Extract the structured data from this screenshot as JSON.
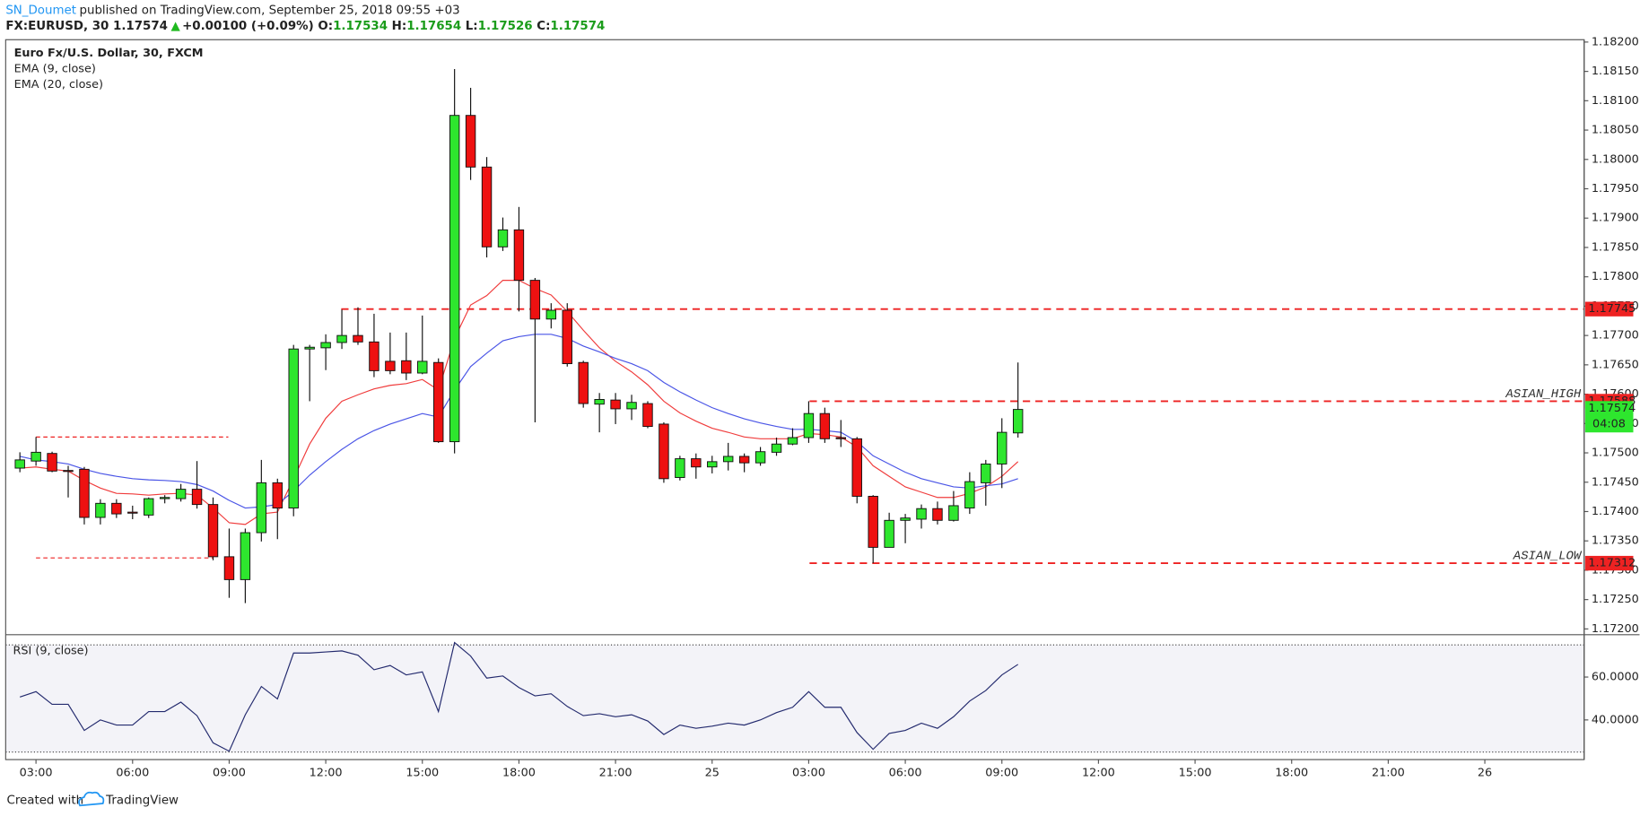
{
  "header": {
    "author": "SN_Doumet",
    "published": "published on TradingView.com, September 25, 2018 09:55 +03",
    "symbol": "FX:EURUSD, 30",
    "last": "1.17574",
    "arrow": "▲",
    "change": "+0.00100 (+0.09%)",
    "quote": [
      {
        "key": "O:",
        "value": "1.17534"
      },
      {
        "key": "H:",
        "value": "1.17654"
      },
      {
        "key": "L:",
        "value": "1.17526"
      },
      {
        "key": "C:",
        "value": "1.17574"
      }
    ]
  },
  "chart_data": [
    {
      "type": "candlestick",
      "title": "Euro Fx/U.S. Dollar, 30, FXCM",
      "x": [
        "02:30",
        "03:00",
        "03:30",
        "04:00",
        "04:30",
        "05:00",
        "05:30",
        "06:00",
        "06:30",
        "07:00",
        "07:30",
        "08:00",
        "08:30",
        "09:00",
        "09:30",
        "10:00",
        "10:30",
        "11:00",
        "11:30",
        "12:00",
        "12:30",
        "13:00",
        "13:30",
        "14:00",
        "14:30",
        "15:00",
        "15:30",
        "16:00",
        "16:30",
        "17:00",
        "17:30",
        "18:00",
        "18:30",
        "19:00",
        "19:30",
        "20:00",
        "20:30",
        "21:00",
        "21:30",
        "22:00",
        "22:30",
        "23:00",
        "23:30",
        "25",
        "00:30",
        "01:00",
        "01:30",
        "02:00",
        "02:30",
        "03:00",
        "03:30",
        "04:00",
        "04:30",
        "05:00",
        "05:30",
        "06:00",
        "06:30",
        "07:00",
        "07:30",
        "08:00",
        "08:30",
        "09:00",
        "09:30"
      ],
      "open": [
        1.17474,
        1.17486,
        1.17499,
        1.1747,
        1.17472,
        1.1739,
        1.17414,
        1.17399,
        1.17394,
        1.17422,
        1.17422,
        1.17438,
        1.17412,
        1.17323,
        1.17284,
        1.17364,
        1.17449,
        1.17406,
        1.17677,
        1.17679,
        1.17688,
        1.177,
        1.17689,
        1.17656,
        1.17657,
        1.17636,
        1.17654,
        1.17519,
        1.18075,
        1.17987,
        1.17851,
        1.1788,
        1.17794,
        1.17728,
        1.17743,
        1.17654,
        1.17583,
        1.1759,
        1.17575,
        1.17584,
        1.17549,
        1.17458,
        1.1749,
        1.17476,
        1.17485,
        1.17494,
        1.17483,
        1.17501,
        1.17515,
        1.17526,
        1.17567,
        1.17526,
        1.17524,
        1.17426,
        1.17339,
        1.17385,
        1.17387,
        1.17405,
        1.17385,
        1.17406,
        1.17449,
        1.17481,
        1.17534
      ],
      "high": [
        1.17501,
        1.17527,
        1.17502,
        1.17478,
        1.17476,
        1.17421,
        1.17421,
        1.1741,
        1.17424,
        1.17428,
        1.17447,
        1.17486,
        1.17424,
        1.17371,
        1.17371,
        1.17488,
        1.17456,
        1.17684,
        1.17684,
        1.17702,
        1.17744,
        1.17748,
        1.17737,
        1.17705,
        1.17705,
        1.17734,
        1.17661,
        1.18154,
        1.18122,
        1.18004,
        1.17901,
        1.17919,
        1.17798,
        1.17755,
        1.17755,
        1.17657,
        1.17602,
        1.17602,
        1.17599,
        1.17588,
        1.17552,
        1.17495,
        1.17499,
        1.17495,
        1.17517,
        1.17499,
        1.1751,
        1.17526,
        1.17542,
        1.17588,
        1.17577,
        1.17556,
        1.17527,
        1.17428,
        1.17398,
        1.17396,
        1.17412,
        1.17417,
        1.17435,
        1.17467,
        1.17488,
        1.17559,
        1.17654
      ],
      "low": [
        1.17467,
        1.17478,
        1.17467,
        1.17424,
        1.17378,
        1.17378,
        1.17389,
        1.17387,
        1.17389,
        1.17414,
        1.17417,
        1.17405,
        1.17317,
        1.17253,
        1.17244,
        1.17349,
        1.17353,
        1.17392,
        1.17588,
        1.17641,
        1.17677,
        1.17684,
        1.17629,
        1.17634,
        1.17624,
        1.17634,
        1.17517,
        1.17499,
        1.17965,
        1.17833,
        1.17844,
        1.17741,
        1.17552,
        1.17712,
        1.17647,
        1.17577,
        1.17535,
        1.17549,
        1.17556,
        1.17542,
        1.17449,
        1.17453,
        1.17456,
        1.17465,
        1.1747,
        1.17467,
        1.17478,
        1.17495,
        1.17513,
        1.17517,
        1.17517,
        1.1751,
        1.17414,
        1.17312,
        1.17339,
        1.17346,
        1.17371,
        1.17378,
        1.17383,
        1.17396,
        1.1741,
        1.1744,
        1.17526
      ],
      "close": [
        1.17488,
        1.17501,
        1.17469,
        1.17469,
        1.1739,
        1.17414,
        1.17396,
        1.17398,
        1.17422,
        1.17424,
        1.17438,
        1.17412,
        1.17323,
        1.17284,
        1.17364,
        1.17449,
        1.17406,
        1.17677,
        1.1768,
        1.17688,
        1.177,
        1.17689,
        1.1764,
        1.1764,
        1.17636,
        1.17656,
        1.17519,
        1.18075,
        1.17987,
        1.17851,
        1.1788,
        1.17794,
        1.17728,
        1.17743,
        1.17652,
        1.17584,
        1.17591,
        1.17575,
        1.17586,
        1.17545,
        1.17456,
        1.1749,
        1.17476,
        1.17485,
        1.17494,
        1.17483,
        1.17502,
        1.17515,
        1.17526,
        1.17567,
        1.17524,
        1.17524,
        1.17426,
        1.17339,
        1.17385,
        1.17389,
        1.17405,
        1.17385,
        1.1741,
        1.17451,
        1.17481,
        1.17535,
        1.17574
      ],
      "up_color": "#2ee62e",
      "down_color": "#ee1111",
      "series": [
        {
          "name": "EMA (9, close)",
          "color": "#f03c3c",
          "values": [
            1.17474,
            1.17476,
            1.17472,
            1.17469,
            1.17453,
            1.1744,
            1.17431,
            1.1743,
            1.17428,
            1.1743,
            1.17431,
            1.17428,
            1.17406,
            1.17381,
            1.17378,
            1.17396,
            1.17399,
            1.17456,
            1.17515,
            1.17559,
            1.17588,
            1.17599,
            1.17609,
            1.17615,
            1.17618,
            1.17625,
            1.17607,
            1.17695,
            1.17752,
            1.17768,
            1.17794,
            1.17794,
            1.1778,
            1.17769,
            1.17741,
            1.17709,
            1.17679,
            1.17656,
            1.17638,
            1.17616,
            1.17588,
            1.17568,
            1.17554,
            1.17542,
            1.17535,
            1.17527,
            1.17524,
            1.17524,
            1.17524,
            1.17533,
            1.17531,
            1.17527,
            1.1751,
            1.17478,
            1.1746,
            1.17442,
            1.17433,
            1.17424,
            1.17424,
            1.17431,
            1.17442,
            1.1746,
            1.17485
          ]
        },
        {
          "name": "EMA (20, close)",
          "color": "#4a55e6",
          "values": [
            1.17494,
            1.17488,
            1.17485,
            1.17481,
            1.17472,
            1.17465,
            1.1746,
            1.17456,
            1.17454,
            1.17453,
            1.17451,
            1.17446,
            1.17435,
            1.17419,
            1.17406,
            1.17408,
            1.17412,
            1.17435,
            1.17462,
            1.17485,
            1.17506,
            1.17524,
            1.17538,
            1.17549,
            1.17558,
            1.17567,
            1.17561,
            1.17607,
            1.17647,
            1.1767,
            1.17691,
            1.17698,
            1.17702,
            1.17702,
            1.17695,
            1.17682,
            1.17672,
            1.17661,
            1.17652,
            1.1764,
            1.1762,
            1.17604,
            1.1759,
            1.17577,
            1.17567,
            1.17558,
            1.17551,
            1.17545,
            1.1754,
            1.1754,
            1.17538,
            1.17535,
            1.17519,
            1.17495,
            1.17481,
            1.17467,
            1.17456,
            1.17449,
            1.17442,
            1.1744,
            1.17444,
            1.17447,
            1.17456
          ]
        }
      ],
      "ylim": [
        1.17191,
        1.18204
      ],
      "yticks": [
        {
          "value": 1.172,
          "label": "1.17200"
        },
        {
          "value": 1.1725,
          "label": "1.17250"
        },
        {
          "value": 1.173,
          "label": "1.17300"
        },
        {
          "value": 1.1735,
          "label": "1.17350"
        },
        {
          "value": 1.174,
          "label": "1.17400"
        },
        {
          "value": 1.1745,
          "label": "1.17450"
        },
        {
          "value": 1.175,
          "label": "1.17500"
        },
        {
          "value": 1.1755,
          "label": "1.17550"
        },
        {
          "value": 1.176,
          "label": "1.17600"
        },
        {
          "value": 1.1765,
          "label": "1.17650"
        },
        {
          "value": 1.177,
          "label": "1.17700"
        },
        {
          "value": 1.1775,
          "label": "1.17750"
        },
        {
          "value": 1.178,
          "label": "1.17800"
        },
        {
          "value": 1.1785,
          "label": "1.17850"
        },
        {
          "value": 1.179,
          "label": "1.17900"
        },
        {
          "value": 1.1795,
          "label": "1.17950"
        },
        {
          "value": 1.18,
          "label": "1.18000"
        },
        {
          "value": 1.1805,
          "label": "1.18050"
        },
        {
          "value": 1.181,
          "label": "1.18100"
        },
        {
          "value": 1.1815,
          "label": "1.18150"
        },
        {
          "value": 1.182,
          "label": "1.18200"
        }
      ],
      "xticks": [
        "03:00",
        "06:00",
        "09:00",
        "12:00",
        "15:00",
        "18:00",
        "21:00",
        "25",
        "03:00",
        "06:00",
        "09:00",
        "12:00",
        "15:00",
        "18:00",
        "21:00",
        "26"
      ],
      "levels": [
        {
          "value": 1.17745,
          "label": "1.17745",
          "color": "#ee2222"
        },
        {
          "value": 1.17588,
          "label": "1.17588",
          "text": "ASIAN_HIGH",
          "color": "#ee2222"
        },
        {
          "value": 1.17312,
          "label": "1.17312",
          "text": "ASIAN_LOW",
          "color": "#ee2222"
        },
        {
          "value": 1.17527,
          "color": "#ee2222"
        },
        {
          "value": 1.17321,
          "color": "#ee2222"
        }
      ],
      "last_price": {
        "value": 1.17574,
        "label": "1.17574",
        "countdown": "04:08",
        "color": "#2ee62e"
      },
      "grid": false
    },
    {
      "type": "line",
      "series": [
        {
          "name": "RSI (9, close)",
          "color": "#232a6e",
          "values": [
            50.7,
            53.2,
            47.3,
            47.3,
            35.1,
            40.0,
            37.6,
            37.6,
            43.9,
            43.9,
            48.3,
            42.0,
            29.3,
            25.4,
            42.4,
            55.6,
            49.8,
            71.2,
            71.2,
            71.7,
            72.2,
            70.2,
            63.4,
            65.4,
            61.0,
            62.4,
            43.9,
            76.1,
            69.8,
            59.5,
            60.5,
            55.1,
            51.2,
            52.2,
            46.3,
            42.0,
            42.9,
            41.5,
            42.4,
            39.5,
            33.2,
            37.6,
            36.1,
            37.1,
            38.5,
            37.6,
            40.0,
            43.4,
            45.9,
            53.2,
            45.9,
            45.9,
            34.1,
            26.3,
            33.7,
            35.1,
            38.5,
            36.1,
            41.5,
            48.8,
            53.7,
            61.0,
            65.9
          ]
        }
      ],
      "ylim": [
        21.5,
        79.5
      ],
      "yticks": [
        {
          "value": 40,
          "label": "40.0000"
        },
        {
          "value": 60,
          "label": "60.0000"
        }
      ],
      "bands": [
        75,
        25
      ],
      "grid": false
    }
  ],
  "footer": {
    "created": "Created with",
    "brand": "TradingView"
  }
}
